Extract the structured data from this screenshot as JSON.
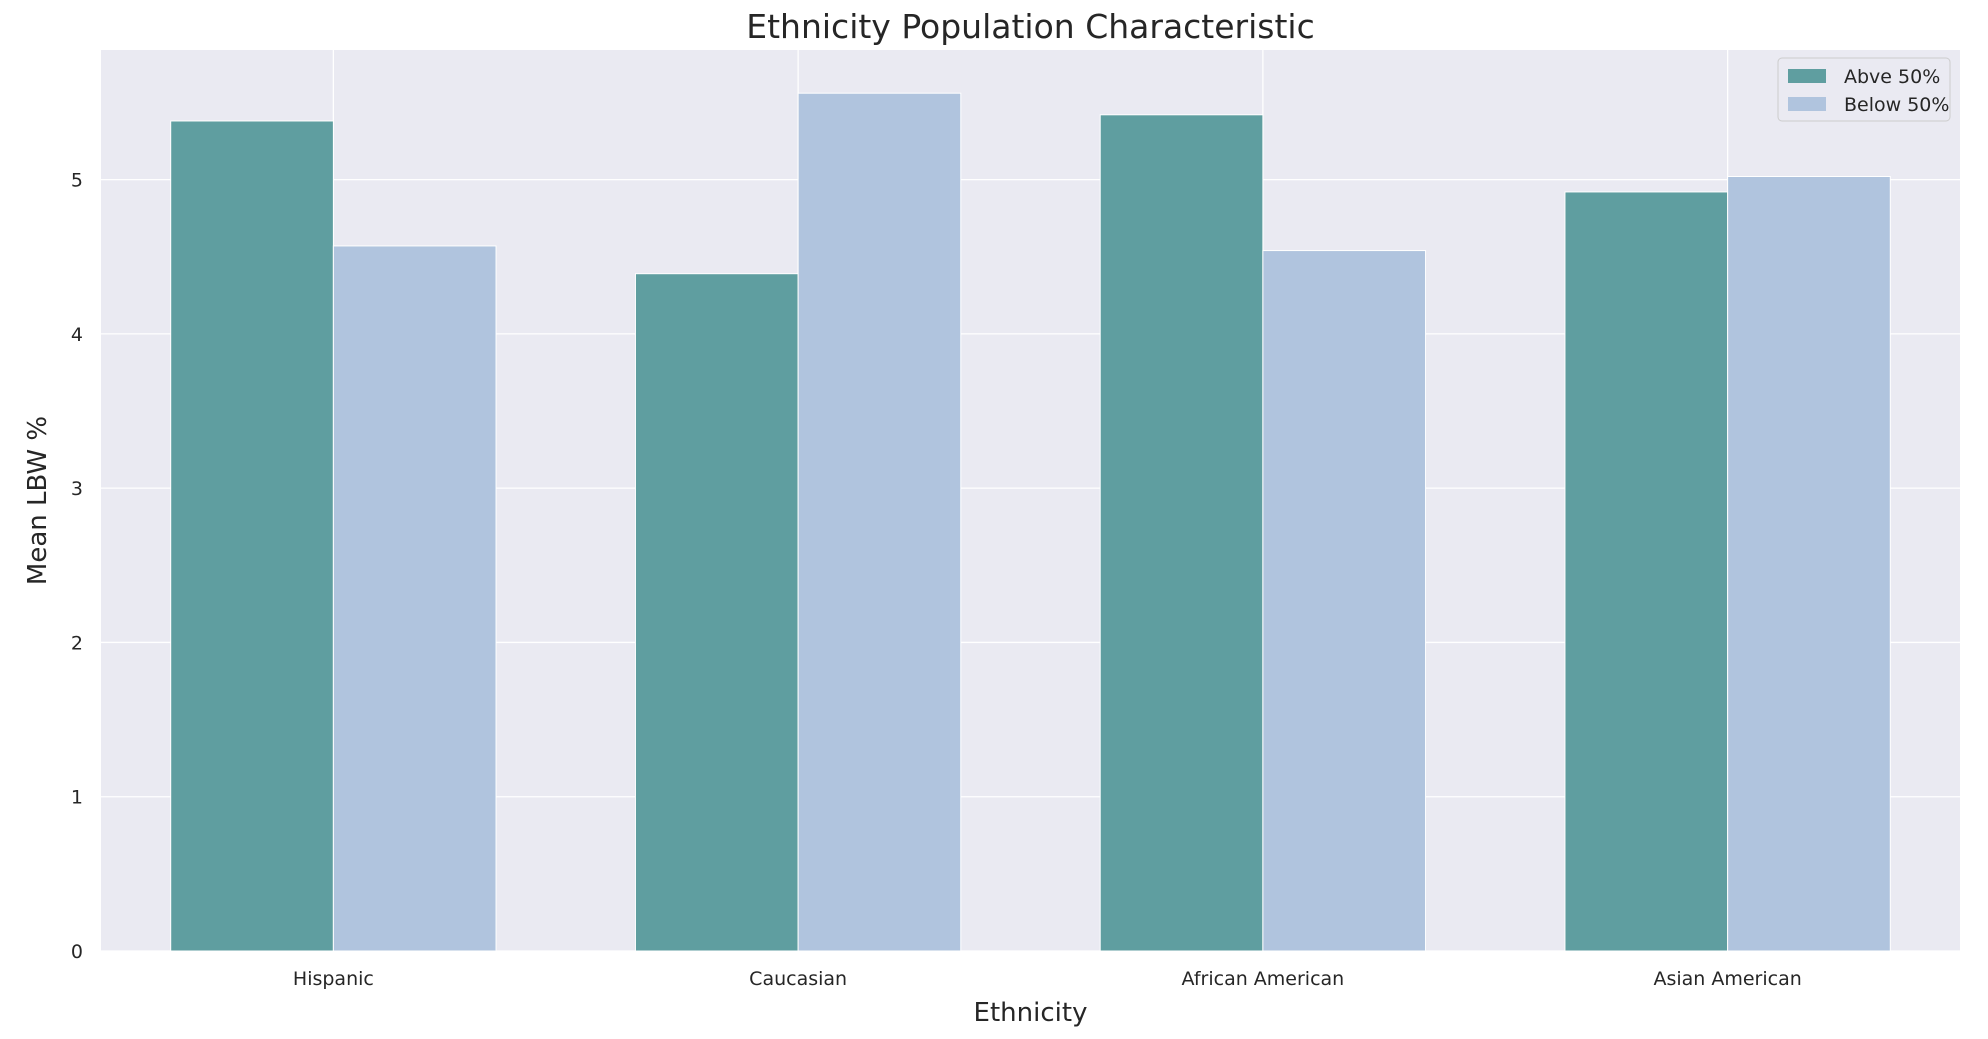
{
  "chart_data": {
    "type": "bar",
    "title": "Ethnicity Population Characteristic",
    "xlabel": "Ethnicity",
    "ylabel": "Mean LBW %",
    "categories": [
      "Hispanic",
      "Caucasian",
      "African American",
      "Asian American"
    ],
    "series": [
      {
        "name": "Abve 50%",
        "values": [
          5.38,
          4.39,
          5.42,
          4.92
        ],
        "color": "#5f9ea0"
      },
      {
        "name": "Below 50%",
        "values": [
          4.57,
          5.56,
          4.54,
          5.02
        ],
        "color": "#b0c4de"
      }
    ],
    "ylim": [
      0,
      5.84
    ],
    "yticks": [
      "0",
      "1",
      "2",
      "3",
      "4",
      "5"
    ],
    "grid": true,
    "legend_position": "top-right",
    "colors": {
      "plot_background": "#eaeaf2",
      "gridline": "#ffffff",
      "text": "#262626"
    }
  }
}
